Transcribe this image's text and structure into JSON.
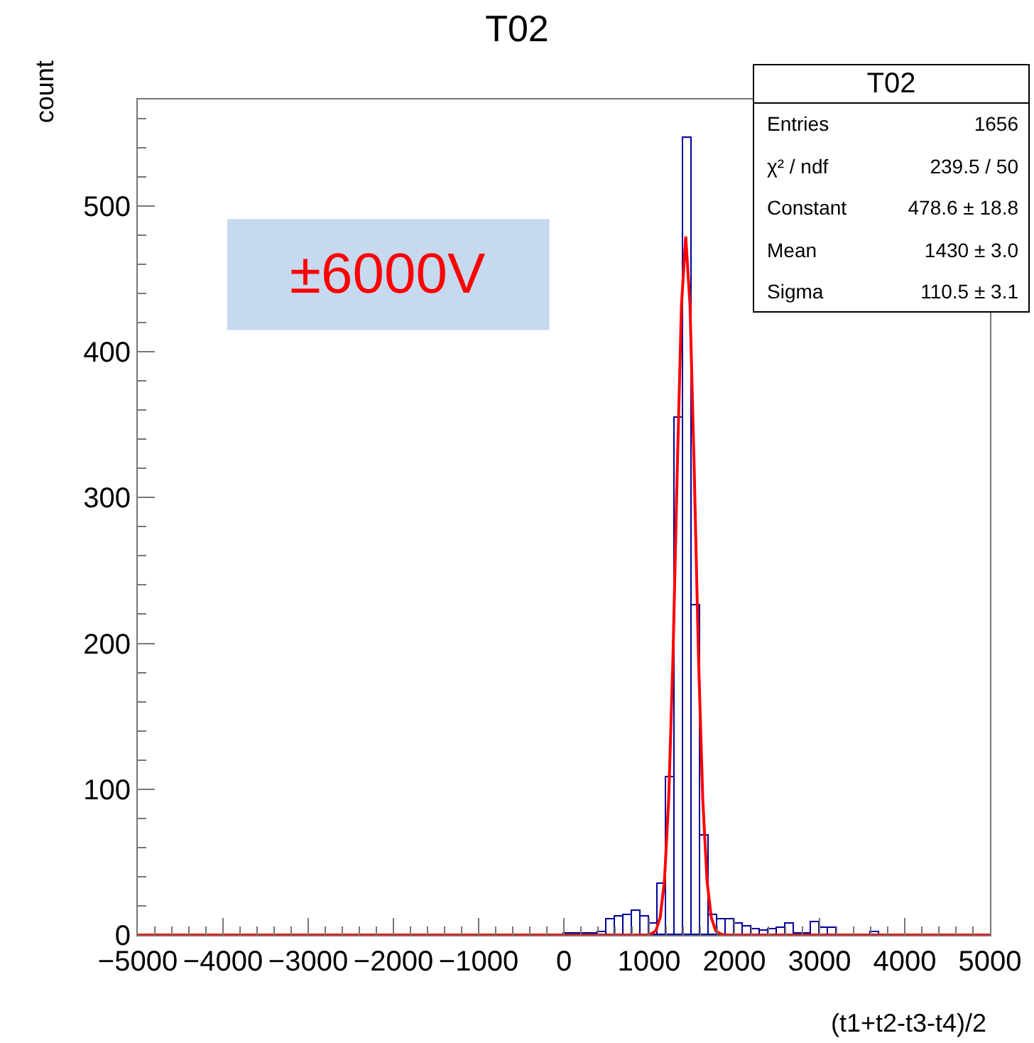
{
  "chart_data": {
    "type": "histogram",
    "title": "T02",
    "xlabel": "(t1+t2-t3-t4)/2",
    "ylabel": "count",
    "bins": [
      -5000,
      -4900,
      -4800,
      -4700,
      -4600,
      -4500,
      -4400,
      -4300,
      -4200,
      -4100,
      -4000,
      -3900,
      -3800,
      -3700,
      -3600,
      -3500,
      -3400,
      -3300,
      -3200,
      -3100,
      -3000,
      -2900,
      -2800,
      -2700,
      -2600,
      -2500,
      -2400,
      -2300,
      -2200,
      -2100,
      -2000,
      -1900,
      -1800,
      -1700,
      -1600,
      -1500,
      -1400,
      -1300,
      -1200,
      -1100,
      -1000,
      -900,
      -800,
      -700,
      -600,
      -500,
      -400,
      -300,
      -200,
      -100,
      0,
      100,
      200,
      300,
      400,
      500,
      600,
      700,
      800,
      900,
      1000,
      1100,
      1200,
      1300,
      1400,
      1500,
      1600,
      1700,
      1800,
      1900,
      2000,
      2100,
      2200,
      2300,
      2400,
      2500,
      2600,
      2700,
      2800,
      2900,
      3000,
      3100,
      3200,
      3300,
      3400,
      3500,
      3600,
      3700,
      3800,
      3900,
      4000,
      4100,
      4200,
      4300,
      4400,
      4500,
      4600,
      4700,
      4800,
      4900,
      5000
    ],
    "values": [
      0,
      0,
      0,
      0,
      0,
      0,
      0,
      0,
      0,
      0,
      0,
      0,
      0,
      0,
      0,
      0,
      0,
      0,
      0,
      0,
      0,
      0,
      0,
      0,
      0,
      0,
      0,
      0,
      0,
      0,
      0,
      0,
      0,
      0,
      0,
      0,
      0,
      0,
      0,
      0,
      0,
      0,
      0,
      0,
      0,
      0,
      0,
      0,
      0,
      0,
      1,
      1,
      1,
      1,
      2,
      11,
      13,
      14,
      17,
      13,
      8,
      35,
      108,
      355,
      547,
      226,
      68,
      14,
      11,
      11,
      8,
      6,
      4,
      3,
      4,
      5,
      8,
      1,
      1,
      9,
      5,
      5,
      0,
      0,
      0,
      0,
      2,
      0,
      0,
      0,
      0,
      0,
      0,
      0,
      0,
      0,
      0,
      0,
      0,
      0
    ],
    "color": "#000099",
    "series": [
      {
        "type": "line",
        "color": "#ff0000",
        "x": [
          -5000,
          980,
          1030,
          1080,
          1130,
          1180,
          1230,
          1280,
          1330,
          1380,
          1430,
          1480,
          1530,
          1580,
          1630,
          1680,
          1730,
          1780,
          1830,
          1880,
          5000
        ],
        "values": [
          0,
          0,
          1,
          3,
          12,
          37,
          93,
          190,
          318,
          432,
          479,
          432,
          318,
          190,
          93,
          37,
          12,
          3,
          1,
          0,
          0
        ]
      }
    ],
    "xlim": [
      -5000,
      5000
    ],
    "xticks": [
      {
        "value": -5000,
        "label": "−5000"
      },
      {
        "value": -4000,
        "label": "−4000"
      },
      {
        "value": -3000,
        "label": "−3000"
      },
      {
        "value": -2000,
        "label": "−2000"
      },
      {
        "value": -1000,
        "label": "−1000"
      },
      0,
      1000,
      2000,
      3000,
      4000,
      5000
    ],
    "ylim": [
      0,
      573
    ],
    "yticks": [
      0,
      100,
      200,
      300,
      400,
      500
    ],
    "annotations": [
      "±6000V",
      "T02",
      "Entries",
      "1656",
      "χ² / ndf",
      "239.5 / 50",
      "Constant",
      "478.6 ± 18.8",
      "Mean",
      "1430 ± 3.0",
      "Sigma",
      "110.5 ± 3.1"
    ]
  }
}
